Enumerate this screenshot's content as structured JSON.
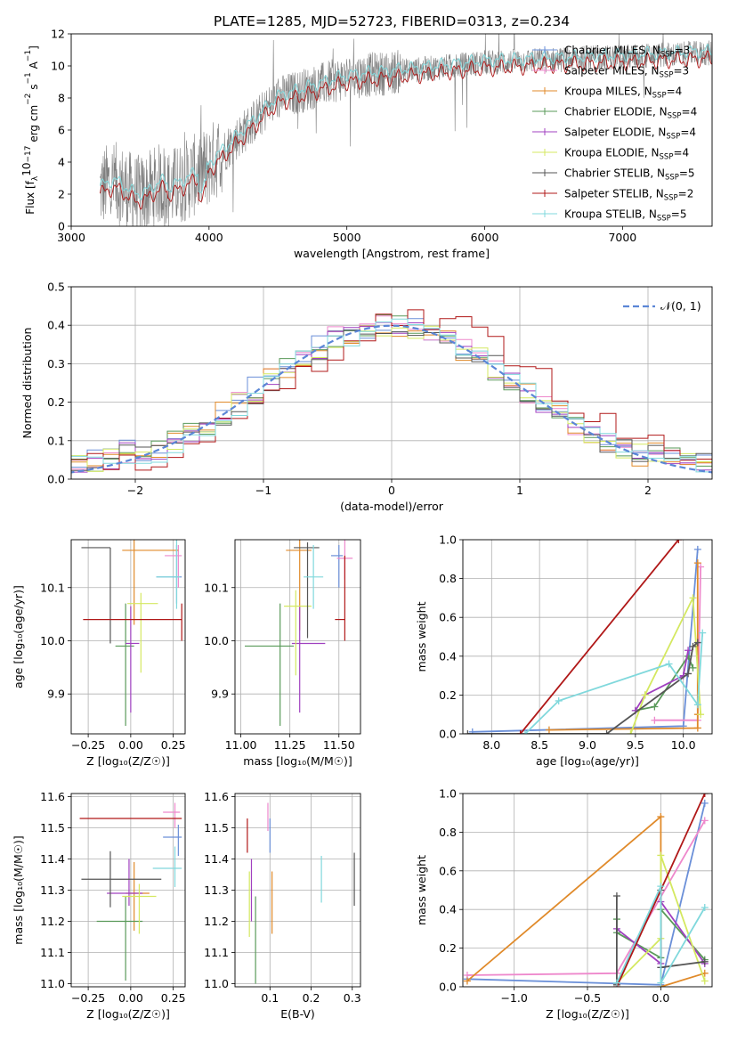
{
  "figure_title": "PLATE=1285, MJD=52723, FIBERID=0313, z=0.234",
  "legend_models": [
    {
      "label": "Chabrier MILES, N",
      "sub": "SSP",
      "tail": "=3",
      "color": "#6a8fd8",
      "marker": "plus"
    },
    {
      "label": "Salpeter MILES, N",
      "sub": "SSP",
      "tail": "=3",
      "color": "#ee88cc",
      "marker": "plus"
    },
    {
      "label": "Kroupa MILES, N",
      "sub": "SSP",
      "tail": "=4",
      "color": "#e08a2a",
      "marker": "plus"
    },
    {
      "label": "Chabrier ELODIE, N",
      "sub": "SSP",
      "tail": "=4",
      "color": "#5a9a5a",
      "marker": "plus"
    },
    {
      "label": "Salpeter ELODIE, N",
      "sub": "SSP",
      "tail": "=4",
      "color": "#a040c0",
      "marker": "plus"
    },
    {
      "label": "Kroupa ELODIE, N",
      "sub": "SSP",
      "tail": "=4",
      "color": "#d4e860",
      "marker": "plus"
    },
    {
      "label": "Chabrier STELIB, N",
      "sub": "SSP",
      "tail": "=5",
      "color": "#555555",
      "marker": "plus"
    },
    {
      "label": "Salpeter STELIB, N",
      "sub": "SSP",
      "tail": "=2",
      "color": "#b01818",
      "marker": "plus"
    },
    {
      "label": "Kroupa STELIB, N",
      "sub": "SSP",
      "tail": "=5",
      "color": "#80d8dc",
      "marker": "plus"
    }
  ],
  "chart_data": [
    {
      "id": "spectrum",
      "type": "line",
      "xlabel": "wavelength [Angstrom, rest frame]",
      "ylabel_main": "Flux [f",
      "ylabel_sub": "λ",
      "ylabel_rest": "10",
      "ylabel_exp1": "−17",
      "ylabel_mid": " erg cm",
      "ylabel_exp2": "−2",
      "ylabel_mid2": " s",
      "ylabel_exp3": "−1",
      "ylabel_end": " A",
      "ylabel_exp4": "−1",
      "ylabel_close": "]",
      "xlim": [
        3000,
        7650
      ],
      "ylim": [
        0,
        12
      ],
      "xticks": [
        3000,
        4000,
        5000,
        6000,
        7000
      ],
      "yticks": [
        0,
        2,
        4,
        6,
        8,
        10,
        12
      ],
      "data_color": "#808080",
      "model_color": "#80d8dc",
      "model2_color": "#b01818",
      "data_x_range": [
        3210,
        7650
      ]
    },
    {
      "id": "residual_hist",
      "type": "bar",
      "xlabel": "(data-model)/error",
      "ylabel": "Normed distribution",
      "xlim": [
        -2.5,
        2.5
      ],
      "ylim": [
        0,
        0.5
      ],
      "xticks": [
        -2,
        -1,
        0,
        1,
        2
      ],
      "yticks": [
        0.0,
        0.1,
        0.2,
        0.3,
        0.4,
        0.5
      ],
      "gaussian_label": "𝒩(0, 1)",
      "gaussian_color": "#5b86d6"
    },
    {
      "id": "age_vs_Z",
      "type": "scatter",
      "xlabel": "Z [log₁₀(Z/Z☉)]",
      "ylabel": "age  [log₁₀(age/yr)]",
      "xlim": [
        -0.35,
        0.32
      ],
      "ylim": [
        9.825,
        10.19
      ],
      "xticks": [
        -0.25,
        0.0,
        0.25
      ],
      "yticks": [
        9.9,
        10.0,
        10.1
      ],
      "points": [
        {
          "model": 0,
          "x": 0.27,
          "y": 10.12,
          "xerr": [
            0.12,
            0.03
          ],
          "yerr": [
            0.05,
            0.06
          ]
        },
        {
          "model": 1,
          "x": 0.28,
          "y": 10.16,
          "xerr": [
            0.08,
            0.02
          ],
          "yerr": [
            0.06,
            0.02
          ]
        },
        {
          "model": 2,
          "x": 0.02,
          "y": 10.17,
          "xerr": [
            0.07,
            0.26
          ],
          "yerr": [
            0.14,
            0.02
          ]
        },
        {
          "model": 3,
          "x": -0.03,
          "y": 9.99,
          "xerr": [
            0.06,
            0.05
          ],
          "yerr": [
            0.15,
            0.08
          ]
        },
        {
          "model": 4,
          "x": 0.0,
          "y": 9.995,
          "xerr": [
            0.03,
            0.05
          ],
          "yerr": [
            0.13,
            0.07
          ]
        },
        {
          "model": 5,
          "x": 0.06,
          "y": 10.07,
          "xerr": [
            0.08,
            0.1
          ],
          "yerr": [
            0.13,
            0.02
          ]
        },
        {
          "model": 6,
          "x": -0.12,
          "y": 10.175,
          "xerr": [
            0.17,
            0.0
          ],
          "yerr": [
            0.18,
            0.0
          ]
        },
        {
          "model": 7,
          "x": 0.3,
          "y": 10.04,
          "xerr": [
            0.58,
            0.0
          ],
          "yerr": [
            0.04,
            0.03
          ]
        },
        {
          "model": 8,
          "x": 0.27,
          "y": 10.12,
          "xerr": [
            0.12,
            0.02
          ],
          "yerr": [
            0.06,
            0.07
          ]
        }
      ]
    },
    {
      "id": "age_vs_mass",
      "type": "scatter",
      "xlabel": "mass [log₁₀(M/M☉)]",
      "ylabel": "",
      "xlim": [
        10.97,
        11.61
      ],
      "ylim": [
        9.825,
        10.19
      ],
      "xticks": [
        11.0,
        11.25,
        11.5
      ],
      "yticks": [
        9.9,
        10.0,
        10.1
      ],
      "points": [
        {
          "model": 0,
          "x": 11.5,
          "y": 10.16,
          "xerr": [
            0.04,
            0.02
          ],
          "yerr": [
            0.06,
            0.02
          ]
        },
        {
          "model": 1,
          "x": 11.53,
          "y": 10.155,
          "xerr": [
            0.04,
            0.04
          ],
          "yerr": [
            0.04,
            0.05
          ]
        },
        {
          "model": 2,
          "x": 11.3,
          "y": 10.17,
          "xerr": [
            0.07,
            0.06
          ],
          "yerr": [
            0.15,
            0.02
          ]
        },
        {
          "model": 3,
          "x": 11.2,
          "y": 9.99,
          "xerr": [
            0.18,
            0.07
          ],
          "yerr": [
            0.15,
            0.08
          ]
        },
        {
          "model": 4,
          "x": 11.3,
          "y": 9.995,
          "xerr": [
            0.04,
            0.13
          ],
          "yerr": [
            0.13,
            0.07
          ]
        },
        {
          "model": 5,
          "x": 11.28,
          "y": 10.065,
          "xerr": [
            0.06,
            0.08
          ],
          "yerr": [
            0.13,
            0.03
          ]
        },
        {
          "model": 6,
          "x": 11.34,
          "y": 10.175,
          "xerr": [
            0.07,
            0.06
          ],
          "yerr": [
            0.17,
            0.01
          ]
        },
        {
          "model": 7,
          "x": 11.53,
          "y": 10.04,
          "xerr": [
            0.05,
            0.0
          ],
          "yerr": [
            0.04,
            0.12
          ]
        },
        {
          "model": 8,
          "x": 11.37,
          "y": 10.12,
          "xerr": [
            0.05,
            0.05
          ],
          "yerr": [
            0.06,
            0.06
          ]
        }
      ]
    },
    {
      "id": "massweight_vs_age",
      "type": "line",
      "xlabel": "age  [log₁₀(age/yr)]",
      "ylabel": "mass weight",
      "xlim": [
        7.7,
        10.3
      ],
      "ylim": [
        0.0,
        1.0
      ],
      "xticks": [
        8.0,
        8.5,
        9.0,
        9.5,
        10.0
      ],
      "yticks": [
        0.0,
        0.2,
        0.4,
        0.6,
        0.8,
        1.0
      ],
      "series": [
        {
          "model": 0,
          "x": [
            7.8,
            10.0,
            10.15
          ],
          "y": [
            0.01,
            0.04,
            0.95
          ]
        },
        {
          "model": 1,
          "x": [
            9.7,
            10.15,
            10.18
          ],
          "y": [
            0.07,
            0.07,
            0.86
          ]
        },
        {
          "model": 2,
          "x": [
            8.6,
            10.15,
            10.15,
            10.15
          ],
          "y": [
            0.02,
            0.03,
            0.88,
            0.1
          ]
        },
        {
          "model": 3,
          "x": [
            9.5,
            9.7,
            10.05,
            10.1
          ],
          "y": [
            0.12,
            0.14,
            0.4,
            0.34
          ]
        },
        {
          "model": 4,
          "x": [
            9.5,
            9.6,
            10.0,
            10.05
          ],
          "y": [
            0.12,
            0.2,
            0.3,
            0.43
          ]
        },
        {
          "model": 5,
          "x": [
            9.45,
            9.6,
            10.1,
            10.18
          ],
          "y": [
            0.0,
            0.2,
            0.7,
            0.1
          ]
        },
        {
          "model": 6,
          "x": [
            7.75,
            9.2,
            10.05,
            10.1,
            10.15
          ],
          "y": [
            0.0,
            0.0,
            0.31,
            0.45,
            0.47
          ]
        },
        {
          "model": 7,
          "x": [
            8.3,
            9.95
          ],
          "y": [
            0.0,
            1.0
          ]
        },
        {
          "model": 8,
          "x": [
            8.35,
            8.7,
            9.85,
            10.15,
            10.2
          ],
          "y": [
            0.0,
            0.17,
            0.36,
            0.15,
            0.52
          ]
        }
      ]
    },
    {
      "id": "mass_vs_Z",
      "type": "scatter",
      "xlabel": "Z [log₁₀(Z/Z☉)]",
      "ylabel": "mass [log₁₀(M/M☉)]",
      "xlim": [
        -0.35,
        0.32
      ],
      "ylim": [
        10.99,
        11.61
      ],
      "xticks": [
        -0.25,
        0.0,
        0.25
      ],
      "yticks": [
        11.0,
        11.1,
        11.2,
        11.3,
        11.4,
        11.5,
        11.6
      ],
      "points": [
        {
          "model": 0,
          "x": 0.28,
          "y": 11.47,
          "xerr": [
            0.09,
            0.02
          ],
          "yerr": [
            0.06,
            0.04
          ]
        },
        {
          "model": 1,
          "x": 0.26,
          "y": 11.55,
          "xerr": [
            0.07,
            0.03
          ],
          "yerr": [
            0.05,
            0.03
          ]
        },
        {
          "model": 2,
          "x": 0.02,
          "y": 11.29,
          "xerr": [
            0.05,
            0.09
          ],
          "yerr": [
            0.12,
            0.1
          ]
        },
        {
          "model": 3,
          "x": -0.03,
          "y": 11.2,
          "xerr": [
            0.17,
            0.1
          ],
          "yerr": [
            0.19,
            0.08
          ]
        },
        {
          "model": 4,
          "x": -0.01,
          "y": 11.29,
          "xerr": [
            0.13,
            0.08
          ],
          "yerr": [
            0.04,
            0.11
          ]
        },
        {
          "model": 5,
          "x": 0.05,
          "y": 11.28,
          "xerr": [
            0.1,
            0.1
          ],
          "yerr": [
            0.12,
            0.04
          ]
        },
        {
          "model": 6,
          "x": -0.12,
          "y": 11.335,
          "xerr": [
            0.17,
            0.3
          ],
          "yerr": [
            0.09,
            0.09
          ]
        },
        {
          "model": 7,
          "x": 0.3,
          "y": 11.53,
          "xerr": [
            0.6,
            0.0
          ],
          "yerr": [
            0.0,
            0.0
          ]
        },
        {
          "model": 8,
          "x": 0.26,
          "y": 11.37,
          "xerr": [
            0.13,
            0.04
          ],
          "yerr": [
            0.06,
            0.07
          ]
        }
      ]
    },
    {
      "id": "mass_vs_ebv",
      "type": "scatter",
      "xlabel": "E(B-V)",
      "ylabel": "",
      "xlim": [
        0.015,
        0.32
      ],
      "ylim": [
        10.99,
        11.61
      ],
      "xticks": [
        0.1,
        0.2,
        0.3
      ],
      "yticks": [
        11.0,
        11.1,
        11.2,
        11.3,
        11.4,
        11.5,
        11.6
      ],
      "points": [
        {
          "model": 0,
          "x": 0.1,
          "y": 11.49,
          "xerr": [
            0.0,
            0.0
          ],
          "yerr": [
            0.07,
            0.04
          ]
        },
        {
          "model": 1,
          "x": 0.095,
          "y": 11.53,
          "xerr": [
            0.0,
            0.0
          ],
          "yerr": [
            0.04,
            0.05
          ]
        },
        {
          "model": 2,
          "x": 0.105,
          "y": 11.26,
          "xerr": [
            0.0,
            0.0
          ],
          "yerr": [
            0.1,
            0.1
          ]
        },
        {
          "model": 3,
          "x": 0.065,
          "y": 11.13,
          "xerr": [
            0.0,
            0.0
          ],
          "yerr": [
            0.13,
            0.15
          ]
        },
        {
          "model": 4,
          "x": 0.055,
          "y": 11.3,
          "xerr": [
            0.0,
            0.0
          ],
          "yerr": [
            0.1,
            0.1
          ]
        },
        {
          "model": 5,
          "x": 0.05,
          "y": 11.26,
          "xerr": [
            0.0,
            0.0
          ],
          "yerr": [
            0.11,
            0.1
          ]
        },
        {
          "model": 6,
          "x": 0.305,
          "y": 11.33,
          "xerr": [
            0.0,
            0.0
          ],
          "yerr": [
            0.08,
            0.09
          ]
        },
        {
          "model": 7,
          "x": 0.045,
          "y": 11.48,
          "xerr": [
            0.0,
            0.0
          ],
          "yerr": [
            0.06,
            0.05
          ]
        },
        {
          "model": 8,
          "x": 0.225,
          "y": 11.33,
          "xerr": [
            0.0,
            0.0
          ],
          "yerr": [
            0.07,
            0.08
          ]
        }
      ]
    },
    {
      "id": "massweight_vs_Z",
      "type": "line",
      "xlabel": "Z [log₁₀(Z/Z☉)]",
      "ylabel": "mass weight",
      "xlim": [
        -1.35,
        0.35
      ],
      "ylim": [
        0.0,
        1.0
      ],
      "xticks": [
        -1.0,
        -0.5,
        0.0
      ],
      "yticks": [
        0.0,
        0.2,
        0.4,
        0.6,
        0.8,
        1.0
      ],
      "series": [
        {
          "model": 0,
          "x": [
            -1.32,
            0.0,
            0.3
          ],
          "y": [
            0.04,
            0.01,
            0.95
          ]
        },
        {
          "model": 1,
          "x": [
            -1.32,
            -0.3,
            0.3
          ],
          "y": [
            0.06,
            0.07,
            0.86
          ]
        },
        {
          "model": 2,
          "x": [
            -1.32,
            0.0,
            0.0,
            0.3
          ],
          "y": [
            0.03,
            0.88,
            0.0,
            0.07
          ]
        },
        {
          "model": 3,
          "x": [
            -0.3,
            -0.3,
            0.0,
            0.0,
            0.3
          ],
          "y": [
            0.35,
            0.28,
            0.15,
            0.4,
            0.14
          ]
        },
        {
          "model": 4,
          "x": [
            -0.3,
            0.0,
            0.0,
            0.3
          ],
          "y": [
            0.3,
            0.12,
            0.44,
            0.12
          ]
        },
        {
          "model": 5,
          "x": [
            -0.3,
            0.0,
            0.0,
            0.3
          ],
          "y": [
            0.02,
            0.25,
            0.68,
            0.03
          ]
        },
        {
          "model": 6,
          "x": [
            -0.3,
            -0.3,
            0.0,
            0.0,
            0.3
          ],
          "y": [
            0.47,
            0.01,
            0.5,
            0.1,
            0.13
          ]
        },
        {
          "model": 7,
          "x": [
            -0.3,
            0.3
          ],
          "y": [
            0.0,
            1.0
          ]
        },
        {
          "model": 8,
          "x": [
            -0.3,
            0.0,
            0.0,
            0.3
          ],
          "y": [
            0.02,
            0.52,
            0.02,
            0.41
          ]
        }
      ]
    }
  ]
}
